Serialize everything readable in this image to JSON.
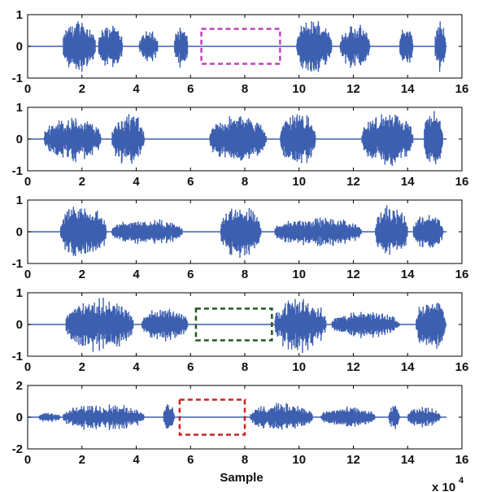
{
  "chart_data": [
    {
      "type": "line",
      "ylim": [
        -1,
        1
      ],
      "xlim": [
        0,
        16
      ],
      "x_ticks": [
        "0",
        "2",
        "4",
        "6",
        "8",
        "10",
        "12",
        "14",
        "16"
      ],
      "y_ticks": [
        "1",
        "0",
        "-1"
      ],
      "series_color": "#3d5fb0",
      "segments": [
        [
          1.3,
          2.5,
          0.92
        ],
        [
          2.6,
          3.5,
          0.72
        ],
        [
          4.1,
          4.8,
          0.55
        ],
        [
          5.4,
          5.9,
          0.72
        ],
        [
          9.9,
          11.2,
          0.92
        ],
        [
          11.5,
          12.6,
          0.75
        ],
        [
          13.7,
          14.2,
          0.7
        ],
        [
          15.0,
          15.4,
          0.85
        ]
      ],
      "highlight_box": {
        "x0": 6.4,
        "x1": 9.3,
        "y0": -0.55,
        "y1": 0.55,
        "color": "#c040c0"
      }
    },
    {
      "type": "line",
      "ylim": [
        -1,
        1
      ],
      "xlim": [
        0,
        16
      ],
      "x_ticks": [
        "0",
        "2",
        "4",
        "6",
        "8",
        "10",
        "12",
        "14",
        "16"
      ],
      "y_ticks": [
        "1",
        "0",
        "-1"
      ],
      "series_color": "#3d5fb0",
      "segments": [
        [
          0.6,
          2.7,
          0.75
        ],
        [
          3.1,
          4.3,
          0.88
        ],
        [
          6.7,
          8.8,
          0.8
        ],
        [
          9.3,
          10.6,
          0.92
        ],
        [
          12.3,
          14.2,
          0.88
        ],
        [
          14.6,
          15.3,
          0.95
        ]
      ]
    },
    {
      "type": "line",
      "ylim": [
        -1,
        1
      ],
      "xlim": [
        0,
        16
      ],
      "x_ticks": [
        "0",
        "2",
        "4",
        "6",
        "8",
        "10",
        "12",
        "14",
        "16"
      ],
      "y_ticks": [
        "1",
        "0",
        "-1"
      ],
      "series_color": "#3d5fb0",
      "segments": [
        [
          1.2,
          2.9,
          0.92
        ],
        [
          3.1,
          5.7,
          0.45
        ],
        [
          7.1,
          8.6,
          0.88
        ],
        [
          9.1,
          12.3,
          0.5
        ],
        [
          12.8,
          14.0,
          0.9
        ],
        [
          14.2,
          15.3,
          0.65
        ]
      ]
    },
    {
      "type": "line",
      "ylim": [
        -1,
        1
      ],
      "xlim": [
        0,
        16
      ],
      "x_ticks": [
        "0",
        "2",
        "4",
        "6",
        "8",
        "10",
        "12",
        "14",
        "16"
      ],
      "y_ticks": [
        "1",
        "0",
        "-1"
      ],
      "series_color": "#3d5fb0",
      "segments": [
        [
          1.4,
          3.9,
          0.88
        ],
        [
          4.2,
          5.9,
          0.55
        ],
        [
          9.1,
          11.0,
          0.92
        ],
        [
          11.2,
          13.7,
          0.45
        ],
        [
          14.3,
          15.4,
          0.85
        ]
      ],
      "highlight_box": {
        "x0": 6.2,
        "x1": 9.0,
        "y0": -0.5,
        "y1": 0.5,
        "color": "#1f5a1f"
      }
    },
    {
      "type": "line",
      "ylim": [
        -2,
        2
      ],
      "xlim": [
        0,
        16
      ],
      "x_ticks": [
        "0",
        "2",
        "4",
        "6",
        "8",
        "10",
        "12",
        "14",
        "16"
      ],
      "y_ticks": [
        "2",
        "0",
        "-2"
      ],
      "series_color": "#3d5fb0",
      "segments": [
        [
          0.4,
          1.2,
          0.35
        ],
        [
          1.3,
          4.3,
          0.9
        ],
        [
          5.0,
          5.4,
          1.05
        ],
        [
          8.2,
          10.5,
          0.95
        ],
        [
          10.8,
          12.8,
          0.7
        ],
        [
          13.3,
          13.7,
          0.8
        ],
        [
          14.0,
          15.2,
          0.7
        ]
      ],
      "highlight_box": {
        "x0": 5.6,
        "x1": 8.0,
        "y0": -1.1,
        "y1": 1.1,
        "color": "#cc2222"
      }
    }
  ],
  "xlabel": "Sample",
  "x_multiplier_base": "x 10",
  "x_multiplier_exp": "4"
}
